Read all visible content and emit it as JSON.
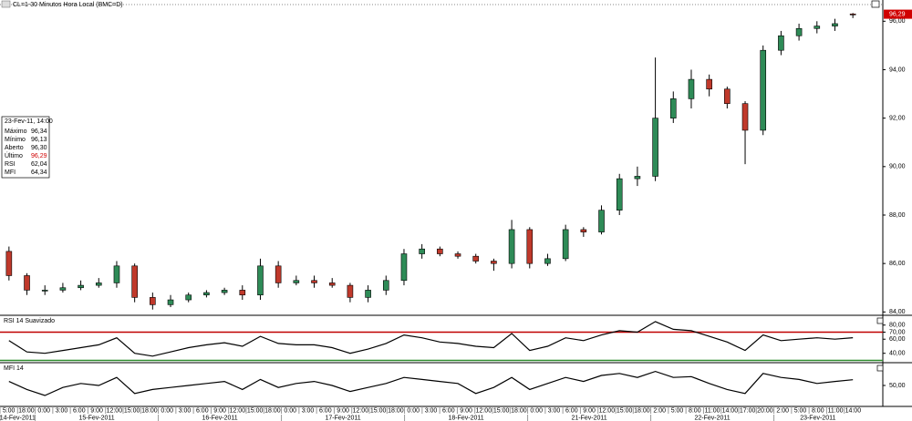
{
  "chart_data": [
    {
      "type": "candlestick",
      "title": "CL=1-30 Minutos Hora Local (BMC=D)",
      "up_color": "#2e8b57",
      "down_color": "#c0392b",
      "open": [
        86.5,
        85.5,
        84.9,
        84.9,
        85.0,
        85.1,
        85.2,
        85.9,
        84.6,
        84.3,
        84.5,
        84.7,
        84.8,
        84.9,
        84.7,
        85.9,
        85.2,
        85.3,
        85.2,
        85.1,
        84.6,
        84.9,
        85.3,
        86.4,
        86.6,
        86.4,
        86.3,
        86.1,
        86.0,
        87.4,
        86.0,
        86.2,
        87.4,
        87.3,
        88.2,
        89.5,
        89.6,
        92.0,
        92.8,
        93.6,
        93.2,
        92.6,
        91.5,
        94.8,
        95.4,
        95.7,
        95.8,
        96.3
      ],
      "high": [
        86.7,
        85.6,
        85.1,
        85.2,
        85.3,
        85.4,
        86.1,
        86.0,
        84.8,
        84.7,
        84.8,
        84.9,
        85.0,
        85.1,
        86.2,
        86.1,
        85.5,
        85.5,
        85.4,
        85.2,
        85.1,
        85.5,
        86.6,
        86.8,
        86.7,
        86.5,
        86.4,
        86.2,
        87.8,
        87.5,
        86.4,
        87.6,
        87.5,
        88.4,
        89.7,
        90.0,
        94.5,
        93.1,
        94.0,
        93.8,
        93.3,
        92.7,
        95.0,
        95.6,
        95.9,
        96.0,
        96.1,
        96.34
      ],
      "low": [
        85.3,
        84.7,
        84.7,
        84.8,
        84.9,
        85.0,
        85.0,
        84.4,
        84.1,
        84.2,
        84.4,
        84.6,
        84.7,
        84.5,
        84.5,
        85.0,
        85.1,
        85.0,
        85.0,
        84.4,
        84.4,
        84.7,
        85.1,
        86.2,
        86.3,
        86.2,
        86.0,
        85.7,
        85.8,
        85.8,
        85.9,
        86.1,
        87.1,
        87.2,
        88.0,
        89.2,
        89.4,
        91.8,
        92.4,
        92.9,
        92.4,
        90.1,
        91.3,
        94.6,
        95.2,
        95.5,
        95.6,
        96.13
      ],
      "close": [
        85.5,
        84.9,
        84.9,
        85.0,
        85.1,
        85.2,
        85.9,
        84.6,
        84.3,
        84.5,
        84.7,
        84.8,
        84.9,
        84.7,
        85.9,
        85.2,
        85.3,
        85.2,
        85.1,
        84.6,
        84.9,
        85.3,
        86.4,
        86.6,
        86.4,
        86.3,
        86.1,
        86.0,
        87.4,
        86.0,
        86.2,
        87.4,
        87.3,
        88.2,
        89.5,
        89.6,
        92.0,
        92.8,
        93.6,
        93.2,
        92.6,
        91.5,
        94.8,
        95.4,
        95.7,
        95.8,
        95.9,
        96.29
      ],
      "ylim": [
        83.9,
        96.5
      ],
      "yticks": [
        {
          "value": 84,
          "label": "84,00"
        },
        {
          "value": 86,
          "label": "86,00"
        },
        {
          "value": 88,
          "label": "88,00"
        },
        {
          "value": 90,
          "label": "90,00"
        },
        {
          "value": 92,
          "label": "92,00"
        },
        {
          "value": 94,
          "label": "94,00"
        },
        {
          "value": 96,
          "label": "96,00"
        }
      ],
      "last_price": {
        "value": 96.29,
        "label": "96,29",
        "color": "#d00000"
      }
    },
    {
      "type": "line",
      "title": "RSI 14 Suavizado",
      "color": "#000000",
      "values": [
        58,
        42,
        40,
        44,
        48,
        52,
        62,
        40,
        36,
        42,
        48,
        52,
        55,
        50,
        64,
        54,
        52,
        52,
        48,
        40,
        46,
        54,
        66,
        62,
        56,
        54,
        50,
        48,
        68,
        44,
        50,
        62,
        58,
        66,
        72,
        70,
        85,
        74,
        72,
        64,
        56,
        44,
        66,
        58,
        60,
        62,
        60,
        62.04
      ],
      "ylim": [
        28,
        90
      ],
      "yticks": [
        {
          "value": 40,
          "label": "40,00"
        },
        {
          "value": 60,
          "label": "60,00"
        },
        {
          "value": 70,
          "label": "70,00"
        },
        {
          "value": 80,
          "label": "80,00"
        }
      ],
      "levels": [
        {
          "value": 70,
          "color": "#c00000"
        },
        {
          "value": 30,
          "color": "#2e8b2e"
        }
      ]
    },
    {
      "type": "line",
      "title": "MFI 14",
      "color": "#000000",
      "values": [
        60,
        40,
        25,
        45,
        55,
        50,
        70,
        30,
        40,
        45,
        50,
        55,
        60,
        40,
        65,
        45,
        55,
        60,
        50,
        35,
        45,
        55,
        70,
        65,
        60,
        55,
        30,
        45,
        70,
        40,
        55,
        70,
        60,
        75,
        80,
        70,
        85,
        70,
        72,
        55,
        40,
        30,
        80,
        70,
        65,
        55,
        60,
        64.34
      ],
      "ylim": [
        0,
        100
      ],
      "yticks": [
        {
          "value": 50,
          "label": "50,00"
        }
      ]
    }
  ],
  "x_axis": {
    "days": [
      {
        "date": "14-Fev-2011",
        "times": [
          "5:00",
          "18:00"
        ]
      },
      {
        "date": "15-Fev-2011",
        "times": [
          "0:00",
          "3:00",
          "6:00",
          "9:00",
          "12:00",
          "15:00",
          "18:00"
        ]
      },
      {
        "date": "16-Fev-2011",
        "times": [
          "0:00",
          "3:00",
          "6:00",
          "9:00",
          "12:00",
          "15:00",
          "18:00"
        ]
      },
      {
        "date": "17-Fev-2011",
        "times": [
          "0:00",
          "3:00",
          "6:00",
          "9:00",
          "12:00",
          "15:00",
          "18:00"
        ]
      },
      {
        "date": "18-Fev-2011",
        "times": [
          "0:00",
          "3:00",
          "6:00",
          "9:00",
          "12:00",
          "15:00",
          "18:00"
        ]
      },
      {
        "date": "21-Fev-2011",
        "times": [
          "0:00",
          "3:00",
          "6:00",
          "9:00",
          "12:00",
          "15:00",
          "18:00"
        ]
      },
      {
        "date": "22-Fev-2011",
        "times": [
          "2:00",
          "5:00",
          "8:00",
          "11:00",
          "14:00",
          "17:00",
          "20:00"
        ]
      },
      {
        "date": "23-Fev-2011",
        "times": [
          "2:00",
          "5:00",
          "8:00",
          "11:00",
          "14:00"
        ]
      }
    ]
  },
  "info_panel": {
    "title": "23-Fev-11, 14:00",
    "rows": [
      [
        "Máximo",
        "96,34"
      ],
      [
        "Mínimo",
        "96,13"
      ],
      [
        "Aberto",
        "96,30"
      ],
      [
        "Último",
        "96,29"
      ],
      [
        "RSI",
        "62,04"
      ],
      [
        "MFI",
        "64,34"
      ]
    ],
    "highlight_color": "#d00000"
  }
}
